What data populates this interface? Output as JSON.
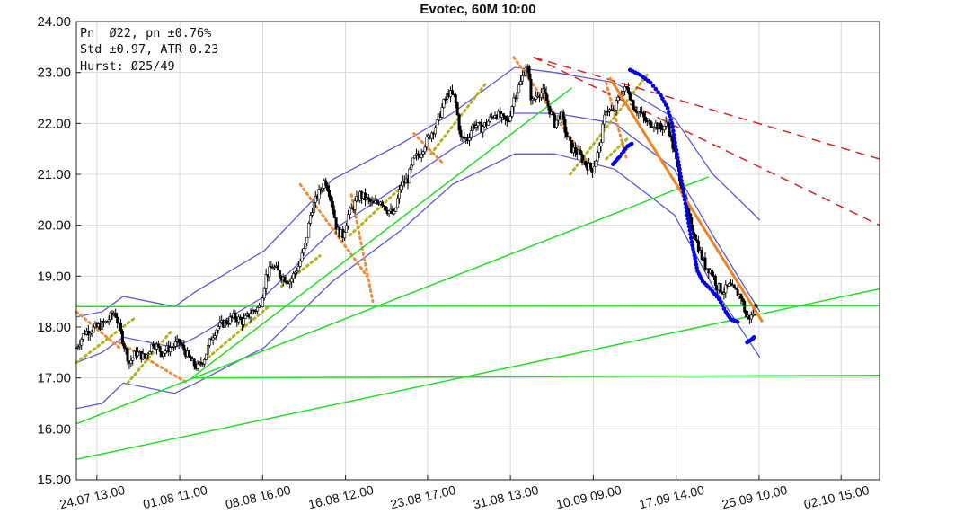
{
  "chart_data": {
    "type": "candlestick",
    "title": "Evotec, 60M 10:00",
    "stats": [
      "Pn  Ø22, pn ±0.76%",
      "Std ±0.97, ATR 0.23",
      "Hurst: Ø25/49"
    ],
    "ylim": [
      15.0,
      24.0
    ],
    "yticks": [
      15.0,
      16.0,
      17.0,
      18.0,
      19.0,
      20.0,
      21.0,
      22.0,
      23.0,
      24.0
    ],
    "ytick_labels": [
      "15.00",
      "16.00",
      "17.00",
      "18.00",
      "19.00",
      "20.00",
      "21.00",
      "22.00",
      "23.00",
      "24.00"
    ],
    "xlim": [
      0,
      940
    ],
    "xticks": [
      24,
      121,
      218,
      315,
      411,
      508,
      605,
      702,
      799,
      895
    ],
    "xtick_labels": [
      "24.07 13.00",
      "01.08 11.00",
      "08.08 16.00",
      "16.08 12.00",
      "23.08 17.00",
      "31.08 13.00",
      "10.09 09.00",
      "17.09 14.00",
      "25.09 10.00",
      "02.10 15.00"
    ],
    "grid": true,
    "price_anchors": [
      [
        0,
        17.6
      ],
      [
        10,
        17.9
      ],
      [
        25,
        18.0
      ],
      [
        35,
        18.1
      ],
      [
        45,
        18.3
      ],
      [
        55,
        17.7
      ],
      [
        62,
        17.3
      ],
      [
        70,
        17.5
      ],
      [
        80,
        17.4
      ],
      [
        90,
        17.7
      ],
      [
        100,
        17.5
      ],
      [
        110,
        17.6
      ],
      [
        120,
        17.7
      ],
      [
        128,
        17.5
      ],
      [
        135,
        17.3
      ],
      [
        142,
        17.2
      ],
      [
        150,
        17.4
      ],
      [
        158,
        17.8
      ],
      [
        165,
        18.0
      ],
      [
        175,
        18.1
      ],
      [
        185,
        18.2
      ],
      [
        195,
        18.1
      ],
      [
        205,
        18.3
      ],
      [
        215,
        18.4
      ],
      [
        222,
        19.0
      ],
      [
        230,
        19.2
      ],
      [
        240,
        19.0
      ],
      [
        250,
        18.9
      ],
      [
        260,
        19.2
      ],
      [
        268,
        19.6
      ],
      [
        275,
        20.3
      ],
      [
        283,
        20.6
      ],
      [
        291,
        20.9
      ],
      [
        297,
        20.6
      ],
      [
        305,
        19.9
      ],
      [
        312,
        19.8
      ],
      [
        318,
        20.2
      ],
      [
        325,
        20.4
      ],
      [
        332,
        20.6
      ],
      [
        340,
        20.5
      ],
      [
        348,
        20.4
      ],
      [
        356,
        20.5
      ],
      [
        364,
        20.3
      ],
      [
        372,
        20.2
      ],
      [
        380,
        20.8
      ],
      [
        388,
        20.9
      ],
      [
        395,
        21.3
      ],
      [
        402,
        21.4
      ],
      [
        408,
        21.6
      ],
      [
        415,
        21.8
      ],
      [
        422,
        22.0
      ],
      [
        430,
        22.4
      ],
      [
        436,
        22.6
      ],
      [
        443,
        22.5
      ],
      [
        450,
        21.7
      ],
      [
        458,
        21.7
      ],
      [
        465,
        22.0
      ],
      [
        473,
        21.9
      ],
      [
        480,
        22.0
      ],
      [
        490,
        22.2
      ],
      [
        498,
        22.1
      ],
      [
        505,
        22.0
      ],
      [
        512,
        22.5
      ],
      [
        520,
        22.8
      ],
      [
        527,
        23.2
      ],
      [
        533,
        22.4
      ],
      [
        540,
        22.6
      ],
      [
        547,
        22.6
      ],
      [
        553,
        22.3
      ],
      [
        560,
        22.0
      ],
      [
        567,
        22.2
      ],
      [
        573,
        21.8
      ],
      [
        580,
        21.5
      ],
      [
        588,
        21.4
      ],
      [
        596,
        21.2
      ],
      [
        604,
        21.1
      ],
      [
        612,
        21.5
      ],
      [
        620,
        22.3
      ],
      [
        628,
        22.2
      ],
      [
        637,
        22.6
      ],
      [
        645,
        22.7
      ],
      [
        653,
        22.3
      ],
      [
        660,
        22.2
      ],
      [
        668,
        22.0
      ],
      [
        676,
        22.0
      ],
      [
        684,
        21.9
      ],
      [
        692,
        22.0
      ],
      [
        700,
        21.4
      ],
      [
        708,
        20.8
      ],
      [
        715,
        20.2
      ],
      [
        722,
        19.9
      ],
      [
        729,
        19.5
      ],
      [
        736,
        19.2
      ],
      [
        743,
        19.1
      ],
      [
        750,
        18.8
      ],
      [
        757,
        18.7
      ],
      [
        764,
        18.8
      ],
      [
        771,
        18.7
      ],
      [
        778,
        18.6
      ],
      [
        784,
        18.2
      ],
      [
        790,
        18.2
      ],
      [
        797,
        18.5
      ]
    ],
    "bands": {
      "upper": [
        [
          0,
          18.2
        ],
        [
          30,
          18.3
        ],
        [
          55,
          18.6
        ],
        [
          115,
          18.4
        ],
        [
          140,
          18.7
        ],
        [
          220,
          19.5
        ],
        [
          300,
          20.9
        ],
        [
          380,
          21.6
        ],
        [
          440,
          22.2
        ],
        [
          513,
          23.1
        ],
        [
          560,
          23.0
        ],
        [
          630,
          22.8
        ],
        [
          700,
          22.1
        ],
        [
          745,
          21.0
        ],
        [
          800,
          20.1
        ]
      ],
      "middle": [
        [
          0,
          17.3
        ],
        [
          30,
          17.5
        ],
        [
          55,
          17.8
        ],
        [
          115,
          17.6
        ],
        [
          140,
          17.8
        ],
        [
          220,
          18.6
        ],
        [
          300,
          19.9
        ],
        [
          380,
          20.8
        ],
        [
          440,
          21.5
        ],
        [
          513,
          22.2
        ],
        [
          560,
          22.2
        ],
        [
          630,
          22.0
        ],
        [
          700,
          21.1
        ],
        [
          745,
          19.8
        ],
        [
          800,
          18.3
        ]
      ],
      "lower": [
        [
          0,
          16.4
        ],
        [
          30,
          16.5
        ],
        [
          55,
          16.9
        ],
        [
          115,
          16.7
        ],
        [
          140,
          16.9
        ],
        [
          220,
          17.6
        ],
        [
          300,
          18.9
        ],
        [
          380,
          19.9
        ],
        [
          440,
          20.8
        ],
        [
          513,
          21.4
        ],
        [
          560,
          21.4
        ],
        [
          630,
          21.1
        ],
        [
          700,
          20.2
        ],
        [
          745,
          18.8
        ],
        [
          800,
          17.4
        ]
      ]
    },
    "trendlines_green": [
      [
        [
          0,
          15.4
        ],
        [
          940,
          18.75
        ]
      ],
      [
        [
          0,
          16.1
        ],
        [
          740,
          20.95
        ]
      ],
      [
        [
          135,
          17.0
        ],
        [
          940,
          17.05
        ]
      ],
      [
        [
          0,
          18.4
        ],
        [
          940,
          18.42
        ]
      ],
      [
        [
          135,
          17.0
        ],
        [
          580,
          22.7
        ]
      ]
    ],
    "trendlines_red_dashed": [
      [
        [
          535,
          23.3
        ],
        [
          940,
          21.3
        ]
      ],
      [
        [
          535,
          23.3
        ],
        [
          940,
          20.0
        ]
      ]
    ],
    "trendline_orange": [
      [
        624,
        22.9
      ],
      [
        803,
        18.1
      ]
    ],
    "dots_blue": [
      [
        [
          648,
          23.05
        ],
        [
          660,
          22.95
        ],
        [
          672,
          22.8
        ],
        [
          684,
          22.55
        ],
        [
          692,
          22.3
        ],
        [
          697,
          22.0
        ],
        [
          700,
          21.7
        ],
        [
          703,
          21.4
        ],
        [
          706,
          21.1
        ],
        [
          709,
          20.8
        ],
        [
          712,
          20.5
        ],
        [
          715,
          20.2
        ],
        [
          718,
          19.9
        ],
        [
          721,
          19.6
        ],
        [
          724,
          19.35
        ],
        [
          727,
          19.1
        ],
        [
          733,
          18.9
        ],
        [
          742,
          18.75
        ],
        [
          752,
          18.55
        ],
        [
          760,
          18.3
        ],
        [
          766,
          18.15
        ],
        [
          774,
          18.1
        ]
      ],
      [
        [
          628,
          21.2
        ],
        [
          636,
          21.35
        ],
        [
          645,
          21.55
        ],
        [
          650,
          21.6
        ]
      ],
      [
        [
          785,
          17.7
        ],
        [
          790,
          17.75
        ],
        [
          793,
          17.8
        ]
      ]
    ],
    "dots_orange": [
      [
        [
          0,
          18.3
        ],
        [
          50,
          17.6
        ]
      ],
      [
        [
          50,
          17.7
        ],
        [
          130,
          16.9
        ]
      ],
      [
        [
          262,
          20.8
        ],
        [
          340,
          19.0
        ]
      ],
      [
        [
          322,
          20.6
        ],
        [
          347,
          18.5
        ]
      ],
      [
        [
          395,
          21.8
        ],
        [
          430,
          21.2
        ]
      ],
      [
        [
          512,
          23.3
        ],
        [
          600,
          21.2
        ]
      ],
      [
        [
          620,
          22.8
        ],
        [
          644,
          21.3
        ]
      ]
    ],
    "dots_olive": [
      [
        [
          0,
          17.3
        ],
        [
          70,
          18.2
        ]
      ],
      [
        [
          60,
          16.9
        ],
        [
          110,
          17.9
        ]
      ],
      [
        [
          140,
          17.2
        ],
        [
          225,
          18.4
        ]
      ],
      [
        [
          240,
          18.8
        ],
        [
          285,
          19.4
        ]
      ],
      [
        [
          320,
          19.8
        ],
        [
          390,
          20.9
        ]
      ],
      [
        [
          415,
          21.4
        ],
        [
          480,
          22.8
        ]
      ],
      [
        [
          578,
          21.0
        ],
        [
          670,
          23.0
        ]
      ],
      [
        [
          620,
          21.3
        ],
        [
          645,
          21.7
        ]
      ]
    ]
  }
}
